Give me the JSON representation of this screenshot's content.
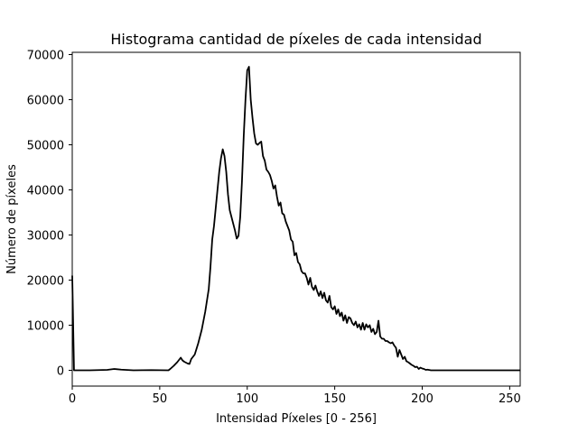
{
  "chart_data": {
    "type": "line",
    "title": "Histograma cantidad de píxeles de cada intensidad",
    "xlabel": "Intensidad Píxeles [0 - 256]",
    "ylabel": "Número de píxeles",
    "xlim": [
      0,
      256
    ],
    "ylim": [
      -3500,
      70500
    ],
    "xticks": [
      0,
      50,
      100,
      150,
      200,
      250
    ],
    "yticks": [
      0,
      10000,
      20000,
      30000,
      40000,
      50000,
      60000,
      70000
    ],
    "xtick_labels": [
      "0",
      "50",
      "100",
      "150",
      "200",
      "250"
    ],
    "ytick_labels": [
      "0",
      "10000",
      "20000",
      "30000",
      "40000",
      "50000",
      "60000",
      "70000"
    ],
    "grid": false,
    "series": [
      {
        "color": "#000000",
        "points": [
          [
            0,
            21000
          ],
          [
            1,
            0
          ],
          [
            10,
            0
          ],
          [
            20,
            100
          ],
          [
            24,
            300
          ],
          [
            28,
            150
          ],
          [
            35,
            0
          ],
          [
            45,
            50
          ],
          [
            55,
            0
          ],
          [
            56,
            300
          ],
          [
            58,
            1000
          ],
          [
            60,
            1800
          ],
          [
            62,
            2800
          ],
          [
            63,
            2200
          ],
          [
            64,
            1900
          ],
          [
            66,
            1500
          ],
          [
            67,
            1400
          ],
          [
            68,
            2500
          ],
          [
            70,
            3500
          ],
          [
            72,
            6000
          ],
          [
            74,
            9000
          ],
          [
            76,
            13000
          ],
          [
            78,
            18000
          ],
          [
            79,
            23000
          ],
          [
            80,
            29000
          ],
          [
            81,
            32000
          ],
          [
            82,
            36000
          ],
          [
            83,
            40000
          ],
          [
            84,
            44000
          ],
          [
            85,
            47000
          ],
          [
            86,
            49000
          ],
          [
            87,
            47500
          ],
          [
            88,
            44000
          ],
          [
            89,
            39000
          ],
          [
            90,
            35500
          ],
          [
            91,
            34000
          ],
          [
            92,
            32500
          ],
          [
            93,
            31000
          ],
          [
            94,
            29200
          ],
          [
            95,
            29800
          ],
          [
            96,
            34000
          ],
          [
            97,
            42000
          ],
          [
            98,
            52000
          ],
          [
            99,
            60000
          ],
          [
            100,
            66500
          ],
          [
            101,
            67300
          ],
          [
            102,
            60000
          ],
          [
            103,
            56000
          ],
          [
            104,
            52500
          ],
          [
            105,
            50300
          ],
          [
            106,
            50000
          ],
          [
            107,
            50400
          ],
          [
            108,
            50700
          ],
          [
            109,
            47500
          ],
          [
            110,
            46500
          ],
          [
            111,
            44500
          ],
          [
            112,
            44000
          ],
          [
            113,
            43300
          ],
          [
            114,
            42000
          ],
          [
            115,
            40300
          ],
          [
            116,
            41000
          ],
          [
            117,
            38500
          ],
          [
            118,
            36500
          ],
          [
            119,
            37200
          ],
          [
            120,
            34800
          ],
          [
            121,
            34500
          ],
          [
            122,
            33000
          ],
          [
            123,
            32000
          ],
          [
            124,
            31000
          ],
          [
            125,
            29000
          ],
          [
            126,
            28500
          ],
          [
            127,
            25500
          ],
          [
            128,
            26000
          ],
          [
            129,
            24000
          ],
          [
            130,
            23500
          ],
          [
            131,
            22000
          ],
          [
            132,
            21500
          ],
          [
            133,
            21500
          ],
          [
            134,
            20500
          ],
          [
            135,
            19000
          ],
          [
            136,
            20500
          ],
          [
            137,
            18500
          ],
          [
            138,
            17800
          ],
          [
            139,
            18800
          ],
          [
            140,
            17500
          ],
          [
            141,
            16500
          ],
          [
            142,
            17500
          ],
          [
            143,
            16000
          ],
          [
            144,
            17200
          ],
          [
            145,
            15500
          ],
          [
            146,
            15000
          ],
          [
            147,
            16500
          ],
          [
            148,
            14000
          ],
          [
            149,
            13500
          ],
          [
            150,
            14200
          ],
          [
            151,
            12500
          ],
          [
            152,
            13500
          ],
          [
            153,
            12000
          ],
          [
            154,
            12800
          ],
          [
            155,
            11000
          ],
          [
            156,
            12200
          ],
          [
            157,
            10500
          ],
          [
            158,
            11800
          ],
          [
            159,
            11500
          ],
          [
            160,
            10500
          ],
          [
            161,
            10000
          ],
          [
            162,
            10800
          ],
          [
            163,
            9500
          ],
          [
            164,
            10200
          ],
          [
            165,
            9000
          ],
          [
            166,
            10500
          ],
          [
            167,
            9000
          ],
          [
            168,
            10200
          ],
          [
            169,
            9500
          ],
          [
            170,
            10000
          ],
          [
            171,
            8500
          ],
          [
            172,
            9200
          ],
          [
            173,
            8000
          ],
          [
            174,
            8500
          ],
          [
            175,
            11000
          ],
          [
            176,
            7500
          ],
          [
            177,
            7000
          ],
          [
            178,
            7000
          ],
          [
            179,
            6500
          ],
          [
            180,
            6500
          ],
          [
            181,
            6200
          ],
          [
            182,
            6000
          ],
          [
            183,
            6200
          ],
          [
            184,
            5500
          ],
          [
            185,
            5000
          ],
          [
            186,
            3000
          ],
          [
            187,
            4500
          ],
          [
            188,
            3500
          ],
          [
            189,
            2500
          ],
          [
            190,
            3000
          ],
          [
            191,
            2000
          ],
          [
            192,
            1800
          ],
          [
            193,
            1500
          ],
          [
            194,
            1200
          ],
          [
            195,
            1000
          ],
          [
            196,
            700
          ],
          [
            197,
            800
          ],
          [
            198,
            300
          ],
          [
            199,
            600
          ],
          [
            200,
            400
          ],
          [
            201,
            300
          ],
          [
            202,
            100
          ],
          [
            203,
            150
          ],
          [
            205,
            0
          ],
          [
            256,
            0
          ]
        ]
      }
    ]
  }
}
